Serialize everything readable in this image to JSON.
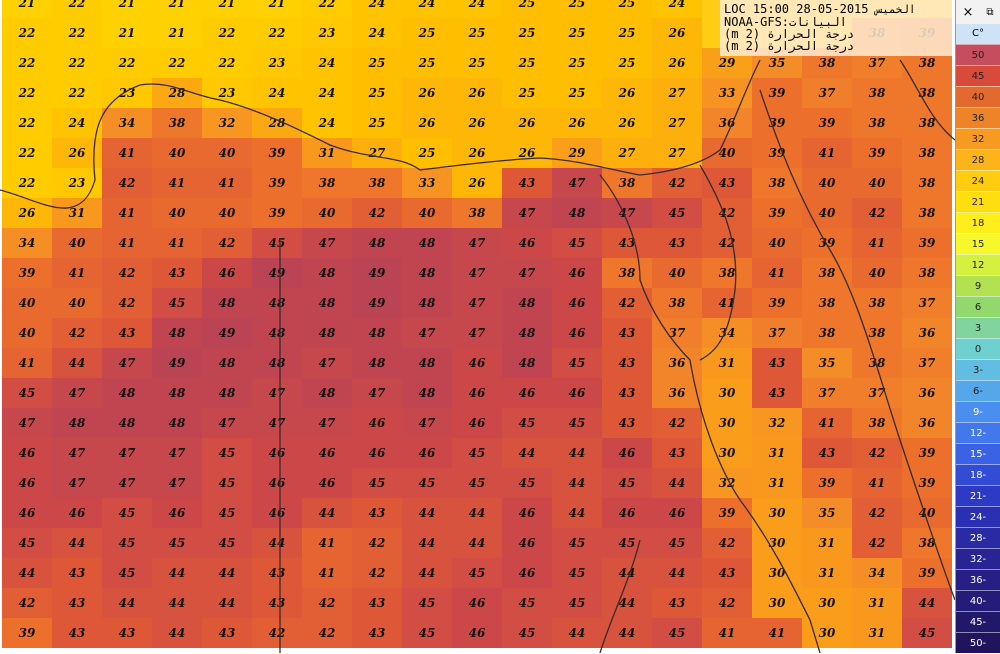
{
  "header": {
    "time": "LOC 15:00 28-05-2015",
    "day": "الخميس",
    "source": "NOAA-GFS:البيانات",
    "layer1": "(m 2) درجة الحرارة",
    "layer2": "(m 2) درجة الحرارة"
  },
  "controls": {
    "close": "×",
    "restore": "⧉"
  },
  "legend": {
    "unit": "C°",
    "items": [
      {
        "label": "50",
        "color": "#c64d5e"
      },
      {
        "label": "45",
        "color": "#d84a3a"
      },
      {
        "label": "40",
        "color": "#e26a2e"
      },
      {
        "label": "36",
        "color": "#ee8428"
      },
      {
        "label": "32",
        "color": "#f79a22"
      },
      {
        "label": "28",
        "color": "#fcb41a"
      },
      {
        "label": "24",
        "color": "#ffcc10"
      },
      {
        "label": "21",
        "color": "#ffde10"
      },
      {
        "label": "18",
        "color": "#ffee1c"
      },
      {
        "label": "15",
        "color": "#f6f82c"
      },
      {
        "label": "12",
        "color": "#d6f040"
      },
      {
        "label": "9",
        "color": "#b2e252"
      },
      {
        "label": "6",
        "color": "#92d86c"
      },
      {
        "label": "3",
        "color": "#80d49c"
      },
      {
        "label": "0",
        "color": "#70cfcf"
      },
      {
        "label": "3-",
        "color": "#62bde2"
      },
      {
        "label": "6-",
        "color": "#56a6ea"
      },
      {
        "label": "9-",
        "color": "#4a8ef0"
      },
      {
        "label": "12-",
        "color": "#4278ec"
      },
      {
        "label": "15-",
        "color": "#3a62e4"
      },
      {
        "label": "18-",
        "color": "#324cd6"
      },
      {
        "label": "21-",
        "color": "#2c3ac6"
      },
      {
        "label": "24-",
        "color": "#2a30b4"
      },
      {
        "label": "28-",
        "color": "#2a2aa4"
      },
      {
        "label": "32-",
        "color": "#282494"
      },
      {
        "label": "36-",
        "color": "#262086"
      },
      {
        "label": "40-",
        "color": "#241c78"
      },
      {
        "label": "45-",
        "color": "#22186a"
      },
      {
        "label": "50-",
        "color": "#20145c"
      }
    ]
  },
  "grid": {
    "rows": [
      [
        21,
        22,
        21,
        21,
        21,
        21,
        22,
        24,
        24,
        24,
        25,
        25,
        25,
        24,
        null,
        null,
        null,
        null,
        null
      ],
      [
        22,
        22,
        21,
        21,
        22,
        22,
        23,
        24,
        25,
        25,
        25,
        25,
        25,
        26,
        null,
        null,
        null,
        38,
        39
      ],
      [
        22,
        22,
        22,
        22,
        22,
        23,
        24,
        25,
        25,
        25,
        25,
        25,
        25,
        26,
        29,
        35,
        38,
        37,
        38
      ],
      [
        22,
        22,
        23,
        28,
        23,
        24,
        24,
        25,
        26,
        26,
        25,
        25,
        26,
        27,
        33,
        39,
        37,
        38,
        38
      ],
      [
        22,
        24,
        34,
        38,
        32,
        28,
        24,
        25,
        26,
        26,
        26,
        26,
        26,
        27,
        36,
        39,
        39,
        38,
        38
      ],
      [
        22,
        26,
        41,
        40,
        40,
        39,
        31,
        27,
        25,
        26,
        26,
        29,
        27,
        27,
        40,
        39,
        41,
        39,
        38
      ],
      [
        22,
        23,
        42,
        41,
        41,
        39,
        38,
        38,
        33,
        26,
        43,
        47,
        38,
        42,
        43,
        38,
        40,
        40,
        38
      ],
      [
        26,
        31,
        41,
        40,
        40,
        39,
        40,
        42,
        40,
        38,
        47,
        48,
        47,
        45,
        42,
        39,
        40,
        42,
        38
      ],
      [
        34,
        40,
        41,
        41,
        42,
        45,
        47,
        48,
        48,
        47,
        46,
        45,
        43,
        43,
        42,
        40,
        39,
        41,
        39
      ],
      [
        39,
        41,
        42,
        43,
        46,
        49,
        48,
        49,
        48,
        47,
        47,
        46,
        38,
        40,
        38,
        41,
        38,
        40,
        38
      ],
      [
        40,
        40,
        42,
        45,
        48,
        48,
        48,
        49,
        48,
        47,
        48,
        46,
        42,
        38,
        41,
        39,
        38,
        38,
        37
      ],
      [
        40,
        42,
        43,
        48,
        49,
        48,
        48,
        48,
        47,
        47,
        48,
        46,
        43,
        37,
        34,
        37,
        38,
        38,
        36
      ],
      [
        41,
        44,
        47,
        49,
        48,
        48,
        47,
        48,
        48,
        46,
        48,
        45,
        43,
        36,
        31,
        43,
        35,
        38,
        37
      ],
      [
        45,
        47,
        48,
        48,
        48,
        47,
        48,
        47,
        48,
        46,
        46,
        46,
        43,
        36,
        30,
        43,
        37,
        37,
        36
      ],
      [
        47,
        48,
        48,
        48,
        47,
        47,
        47,
        46,
        47,
        46,
        45,
        45,
        43,
        42,
        30,
        32,
        41,
        38,
        36
      ],
      [
        46,
        47,
        47,
        47,
        45,
        46,
        46,
        46,
        46,
        45,
        44,
        44,
        46,
        43,
        30,
        31,
        43,
        42,
        39
      ],
      [
        46,
        47,
        47,
        47,
        45,
        46,
        46,
        45,
        45,
        45,
        45,
        44,
        45,
        44,
        32,
        31,
        39,
        41,
        39
      ],
      [
        46,
        46,
        45,
        46,
        45,
        46,
        44,
        43,
        44,
        44,
        46,
        44,
        46,
        46,
        39,
        30,
        35,
        42,
        40
      ],
      [
        45,
        44,
        45,
        45,
        45,
        44,
        41,
        42,
        44,
        44,
        46,
        45,
        45,
        45,
        42,
        30,
        31,
        42,
        38
      ],
      [
        44,
        43,
        45,
        44,
        44,
        43,
        41,
        42,
        44,
        45,
        46,
        45,
        44,
        44,
        43,
        30,
        31,
        34,
        39
      ],
      [
        42,
        43,
        44,
        44,
        44,
        43,
        42,
        43,
        45,
        46,
        45,
        45,
        44,
        43,
        42,
        30,
        30,
        31,
        44
      ],
      [
        39,
        43,
        43,
        44,
        43,
        42,
        42,
        43,
        45,
        46,
        45,
        44,
        44,
        45,
        41,
        41,
        30,
        31,
        45
      ]
    ]
  }
}
